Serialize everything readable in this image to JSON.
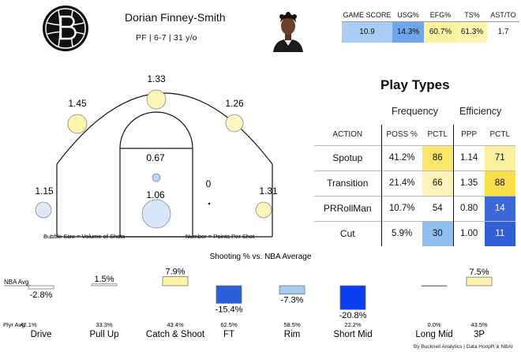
{
  "player": {
    "name": "Dorian Finney-Smith",
    "meta": "PF  |  6-7  |  31 y/o"
  },
  "stats": {
    "headers": [
      "GAME SCORE",
      "USG%",
      "EFG%",
      "TS%",
      "AST/TO"
    ],
    "values": [
      "10.9",
      "14.3%",
      "60.7%",
      "61.3%",
      "1.7"
    ],
    "colors": [
      "#a9cdf3",
      "#6ea6ec",
      "#faf29e",
      "#fbf4ae",
      "#ffffff"
    ]
  },
  "court": {
    "zones": [
      {
        "name": "left-corner",
        "ppp": "1.15",
        "color": "#dfe9f6"
      },
      {
        "name": "left-wing",
        "ppp": "1.45",
        "color": "#fbf5b0"
      },
      {
        "name": "top-key",
        "ppp": "1.33",
        "color": "#fbf5b8"
      },
      {
        "name": "right-wing",
        "ppp": "1.26",
        "color": "#fbf6c2"
      },
      {
        "name": "right-corner",
        "ppp": "1.31",
        "color": "#fbf5b8"
      },
      {
        "name": "mid-range",
        "ppp": "0.67",
        "color": "#b9d4f4"
      },
      {
        "name": "right-short",
        "ppp": "0",
        "color": "#111111"
      },
      {
        "name": "rim",
        "ppp": "1.06",
        "color": "#d7e6f8"
      }
    ],
    "legend_size": "Bubble Size = Volume of Shots",
    "legend_number": "Number = Points Per Shot"
  },
  "play_types": {
    "title": "Play Types",
    "group_frequency": "Frequency",
    "group_efficiency": "Efficiency",
    "columns": [
      "ACTION",
      "POSS %",
      "PCTL",
      "PPP",
      "PCTL"
    ],
    "rows": [
      {
        "action": "Spotup",
        "poss": "41.2%",
        "pctl": "86",
        "ppp": "1.14",
        "eff_pctl": "71",
        "pctl_color": "#fbe56a",
        "eff_color": "#fbf0a0",
        "pctl_text": "#111",
        "eff_text": "#111"
      },
      {
        "action": "Transition",
        "poss": "21.4%",
        "pctl": "66",
        "ppp": "1.35",
        "eff_pctl": "88",
        "pctl_color": "#fbf3b8",
        "eff_color": "#f9df4a",
        "pctl_text": "#111",
        "eff_text": "#111"
      },
      {
        "action": "PRRollMan",
        "poss": "10.7%",
        "pctl": "54",
        "ppp": "0.80",
        "eff_pctl": "14",
        "pctl_color": "#ffffff",
        "eff_color": "#3a68d8",
        "pctl_text": "#111",
        "eff_text": "#ffffff"
      },
      {
        "action": "Cut",
        "poss": "5.9%",
        "pctl": "30",
        "ppp": "1.00",
        "eff_pctl": "11",
        "pctl_color": "#8fc0f0",
        "eff_color": "#2f5fd6",
        "pctl_text": "#111",
        "eff_text": "#ffffff"
      }
    ]
  },
  "chart_data": {
    "type": "bar",
    "title": "Shooting % vs. NBA Average",
    "baseline_label": "NBA Avg",
    "player_avg_label": "Plyr Avg",
    "categories": [
      "Drive",
      "Pull Up",
      "Catch & Shoot",
      "FT",
      "Rim",
      "Short Mid",
      "Long Mid",
      "3P"
    ],
    "values": [
      -2.8,
      1.5,
      7.9,
      -15.4,
      -7.3,
      -20.8,
      0,
      7.5
    ],
    "value_labels": [
      "-2.8%",
      "1.5%",
      "7.9%",
      "-15.4%",
      "-7.3%",
      "-20.8%",
      "",
      "7.5%"
    ],
    "player_avg": [
      "42.1%",
      "33.3%",
      "43.4%",
      "62.5%",
      "58.5%",
      "22.2%",
      "0.0%",
      "43.5%"
    ],
    "colors": [
      "#ffffff",
      "#ffffff",
      "#faf3a8",
      "#2b5fd8",
      "#a8cbf2",
      "#0a3ff0",
      "#ffffff",
      "#faf3b0"
    ]
  },
  "credit": "By Bucknell Analytics | Data HoopR & NBAr"
}
